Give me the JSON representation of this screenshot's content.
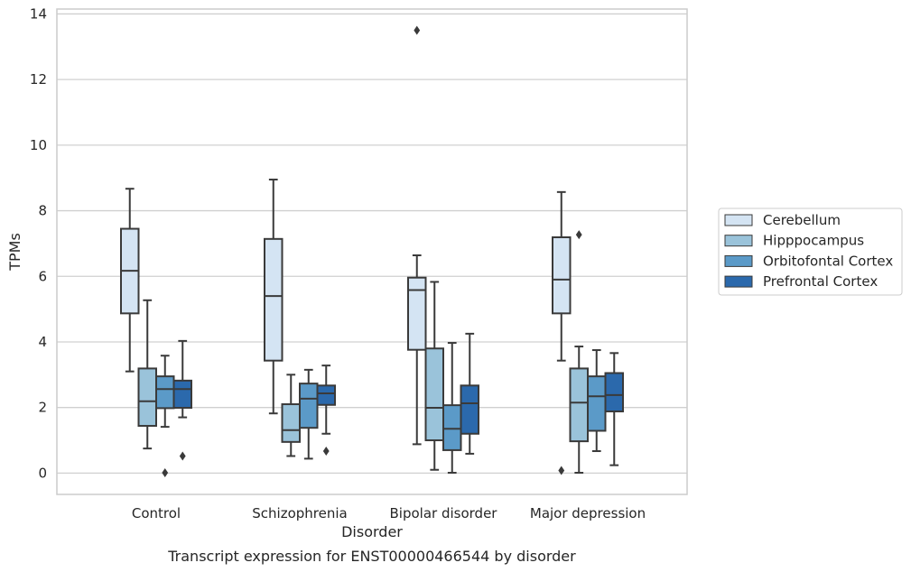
{
  "chart_data": {
    "type": "boxplot",
    "xlabel": "Disorder",
    "ylabel": "TPMs",
    "caption": "Transcript expression for ENST00000466544 by disorder",
    "ylim": [
      -0.65,
      14.15
    ],
    "yticks": [
      0,
      2,
      4,
      6,
      8,
      10,
      12,
      14
    ],
    "grid": "horizontal",
    "legend_position": "right",
    "categories": [
      "Control",
      "Schizophrenia",
      "Bipolar disorder",
      "Major depression"
    ],
    "series": [
      {
        "name": "Cerebellum",
        "color": "#d4e4f3",
        "boxes": [
          {
            "whislo": 3.1,
            "q1": 4.87,
            "med": 6.17,
            "q3": 7.45,
            "whishi": 8.67,
            "fliers": []
          },
          {
            "whislo": 1.82,
            "q1": 3.43,
            "med": 5.4,
            "q3": 7.14,
            "whishi": 8.95,
            "fliers": []
          },
          {
            "whislo": 0.88,
            "q1": 3.76,
            "med": 5.58,
            "q3": 5.96,
            "whishi": 6.64,
            "fliers": [
              13.5
            ]
          },
          {
            "whislo": 3.43,
            "q1": 4.87,
            "med": 5.9,
            "q3": 7.19,
            "whishi": 8.57,
            "fliers": [
              0.08
            ]
          }
        ]
      },
      {
        "name": "Hipppocampus",
        "color": "#9ac3da",
        "boxes": [
          {
            "whislo": 0.75,
            "q1": 1.44,
            "med": 2.19,
            "q3": 3.19,
            "whishi": 5.27,
            "fliers": []
          },
          {
            "whislo": 0.52,
            "q1": 0.95,
            "med": 1.31,
            "q3": 2.1,
            "whishi": 3.0,
            "fliers": []
          },
          {
            "whislo": 0.1,
            "q1": 1.0,
            "med": 1.99,
            "q3": 3.8,
            "whishi": 5.83,
            "fliers": []
          },
          {
            "whislo": 0.01,
            "q1": 0.97,
            "med": 2.15,
            "q3": 3.19,
            "whishi": 3.86,
            "fliers": [
              7.27
            ]
          }
        ]
      },
      {
        "name": "Orbitofontal Cortex",
        "color": "#5b9ac8",
        "boxes": [
          {
            "whislo": 1.41,
            "q1": 1.98,
            "med": 2.56,
            "q3": 2.95,
            "whishi": 3.58,
            "fliers": [
              0.01
            ]
          },
          {
            "whislo": 0.44,
            "q1": 1.38,
            "med": 2.27,
            "q3": 2.73,
            "whishi": 3.15,
            "fliers": []
          },
          {
            "whislo": 0.01,
            "q1": 0.7,
            "med": 1.35,
            "q3": 2.07,
            "whishi": 3.97,
            "fliers": []
          },
          {
            "whislo": 0.67,
            "q1": 1.29,
            "med": 2.34,
            "q3": 2.95,
            "whishi": 3.75,
            "fliers": []
          }
        ]
      },
      {
        "name": "Prefrontal Cortex",
        "color": "#2b69ac",
        "boxes": [
          {
            "whislo": 1.7,
            "q1": 1.99,
            "med": 2.56,
            "q3": 2.82,
            "whishi": 4.03,
            "fliers": [
              0.52
            ]
          },
          {
            "whislo": 1.2,
            "q1": 2.08,
            "med": 2.43,
            "q3": 2.67,
            "whishi": 3.28,
            "fliers": [
              0.67
            ]
          },
          {
            "whislo": 0.59,
            "q1": 1.2,
            "med": 2.13,
            "q3": 2.67,
            "whishi": 4.25,
            "fliers": []
          },
          {
            "whislo": 0.24,
            "q1": 1.88,
            "med": 2.38,
            "q3": 3.05,
            "whishi": 3.66,
            "fliers": []
          }
        ]
      }
    ]
  }
}
